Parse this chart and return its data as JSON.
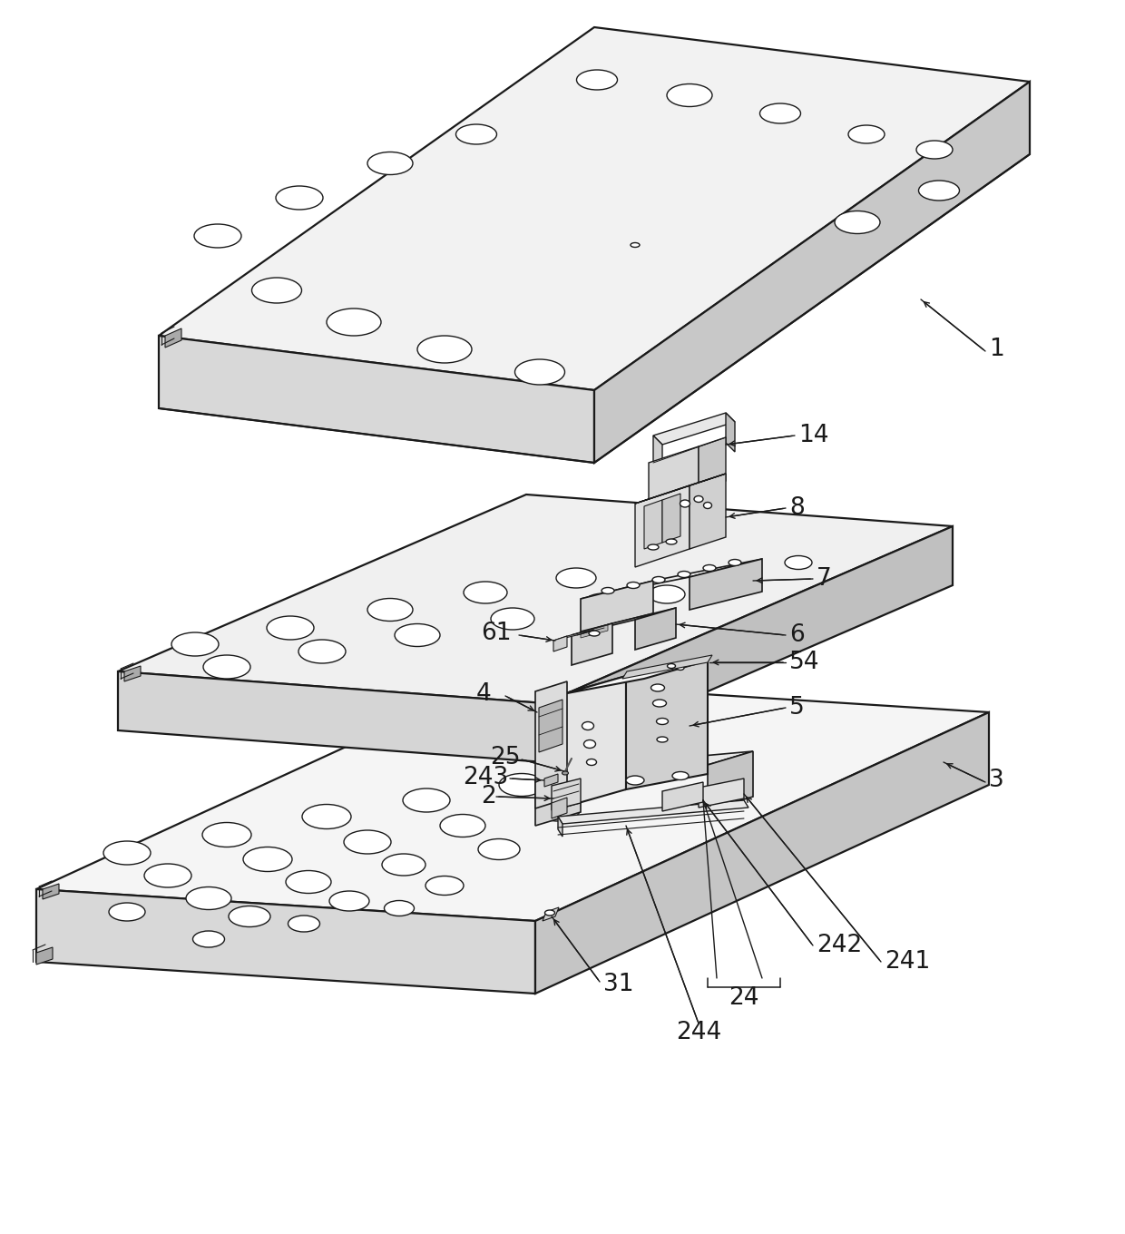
{
  "bg_color": "#ffffff",
  "lc": "#1a1a1a",
  "lw": 1.4,
  "fs": 19,
  "fc_top": "#f0f0f0",
  "fc_front": "#d8d8d8",
  "fc_right": "#c8c8c8",
  "fc_bot": "#e0e0e0",
  "fc_block_f": "#e8e8e8",
  "fc_block_r": "#d0d0d0",
  "fc_block_t": "#f4f4f4"
}
